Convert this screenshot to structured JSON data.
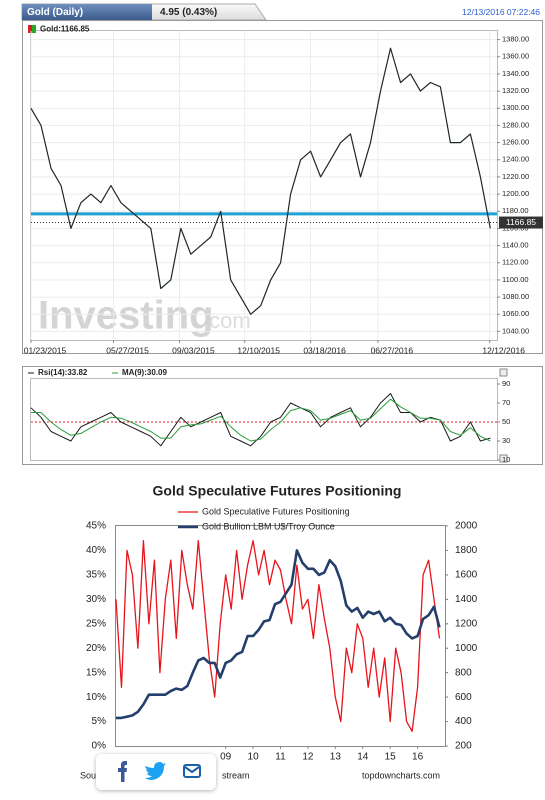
{
  "chart_data": [
    {
      "type": "line",
      "title": "Gold (Daily)",
      "change": "4.95 (0.43%)",
      "timestamp": "12/13/2016 07:22:46",
      "legend": "Gold:1166.85",
      "last_value": 1166.85,
      "watermark": "Investing",
      "watermark_suffix": ".com",
      "color": "#1f2a1f",
      "x": [
        0,
        15,
        30,
        45,
        60,
        75,
        90,
        105,
        120,
        135,
        150,
        165,
        180,
        195,
        210,
        225,
        240,
        255,
        270,
        285,
        300,
        315,
        330,
        345,
        360,
        375,
        390,
        405,
        420,
        435,
        450,
        465,
        480,
        495,
        510,
        525,
        540,
        555,
        570,
        585,
        600,
        615,
        630,
        645,
        660,
        675,
        690
      ],
      "values": [
        1300,
        1280,
        1230,
        1210,
        1160,
        1190,
        1200,
        1190,
        1210,
        1190,
        1180,
        1170,
        1160,
        1090,
        1100,
        1160,
        1130,
        1140,
        1150,
        1180,
        1100,
        1080,
        1060,
        1070,
        1100,
        1120,
        1200,
        1240,
        1250,
        1220,
        1240,
        1260,
        1270,
        1220,
        1260,
        1320,
        1370,
        1330,
        1340,
        1320,
        1330,
        1325,
        1260,
        1260,
        1270,
        1220,
        1160
      ],
      "xlim": [
        0,
        700
      ],
      "xticks": [
        {
          "value": 0,
          "label": "01/23/2015"
        },
        {
          "value": 124,
          "label": "05/27/2015"
        },
        {
          "value": 223,
          "label": "09/03/2015"
        },
        {
          "value": 321,
          "label": "12/10/2015"
        },
        {
          "value": 420,
          "label": "03/18/2016"
        },
        {
          "value": 521,
          "label": "06/27/2016"
        },
        {
          "value": 689,
          "label": "12/12/2016"
        }
      ],
      "ylim": [
        1030,
        1390
      ],
      "yticks": [
        {
          "value": 1040,
          "label": "1040.00"
        },
        {
          "value": 1060,
          "label": "1060.00"
        },
        {
          "value": 1080,
          "label": "1080.00"
        },
        {
          "value": 1100,
          "label": "1100.00"
        },
        {
          "value": 1120,
          "label": "1120.00"
        },
        {
          "value": 1140,
          "label": "1140.00"
        },
        {
          "value": 1160,
          "label": "1160.00"
        },
        {
          "value": 1180,
          "label": "1180.00"
        },
        {
          "value": 1200,
          "label": "1200.00"
        },
        {
          "value": 1220,
          "label": "1220.00"
        },
        {
          "value": 1240,
          "label": "1240.00"
        },
        {
          "value": 1260,
          "label": "1260.00"
        },
        {
          "value": 1280,
          "label": "1280.00"
        },
        {
          "value": 1300,
          "label": "1300.00"
        },
        {
          "value": 1320,
          "label": "1320.00"
        },
        {
          "value": 1340,
          "label": "1340.00"
        },
        {
          "value": 1360,
          "label": "1360.00"
        },
        {
          "value": 1380,
          "label": "1380.00"
        }
      ],
      "hline": 1177,
      "hline_color": "#1ea0d8",
      "grid": true
    },
    {
      "type": "line",
      "x": [
        0,
        15,
        30,
        45,
        60,
        75,
        90,
        105,
        120,
        135,
        150,
        165,
        180,
        195,
        210,
        225,
        240,
        255,
        270,
        285,
        300,
        315,
        330,
        345,
        360,
        375,
        390,
        405,
        420,
        435,
        450,
        465,
        480,
        495,
        510,
        525,
        540,
        555,
        570,
        585,
        600,
        615,
        630,
        645,
        660,
        675,
        690
      ],
      "series": [
        {
          "name": "Rsi(14):33.82",
          "color": "#1a1a1a",
          "values": [
            65,
            55,
            40,
            35,
            30,
            45,
            50,
            55,
            60,
            50,
            45,
            40,
            35,
            25,
            40,
            55,
            45,
            50,
            55,
            60,
            35,
            30,
            25,
            35,
            50,
            55,
            70,
            65,
            60,
            45,
            55,
            60,
            65,
            45,
            55,
            70,
            80,
            60,
            60,
            50,
            55,
            52,
            30,
            35,
            50,
            30,
            33
          ]
        },
        {
          "name": "MA(9):30.09",
          "color": "#2a9d3a",
          "values": [
            60,
            60,
            50,
            42,
            36,
            38,
            44,
            50,
            55,
            54,
            50,
            45,
            40,
            33,
            33,
            45,
            47,
            48,
            52,
            56,
            45,
            36,
            30,
            32,
            42,
            50,
            62,
            65,
            62,
            52,
            54,
            58,
            62,
            52,
            54,
            64,
            74,
            66,
            60,
            54,
            54,
            52,
            40,
            36,
            44,
            35,
            30
          ]
        }
      ],
      "xlim": [
        0,
        700
      ],
      "ylim": [
        10,
        90
      ],
      "yticks": [
        10,
        30,
        50,
        70,
        90
      ],
      "hline": 50,
      "hline_color": "#d22"
    },
    {
      "type": "line",
      "title": "Gold Speculative Futures Positioning",
      "x": [
        2005,
        2005.2,
        2005.4,
        2005.6,
        2005.8,
        2006,
        2006.2,
        2006.4,
        2006.6,
        2006.8,
        2007,
        2007.2,
        2007.4,
        2007.6,
        2007.8,
        2008,
        2008.2,
        2008.4,
        2008.6,
        2008.8,
        2009,
        2009.2,
        2009.4,
        2009.6,
        2009.8,
        2010,
        2010.2,
        2010.4,
        2010.6,
        2010.8,
        2011,
        2011.2,
        2011.4,
        2011.6,
        2011.8,
        2012,
        2012.2,
        2012.4,
        2012.6,
        2012.8,
        2013,
        2013.2,
        2013.4,
        2013.6,
        2013.8,
        2014,
        2014.2,
        2014.4,
        2014.6,
        2014.8,
        2015,
        2015.2,
        2015.4,
        2015.6,
        2015.8,
        2016,
        2016.2,
        2016.4,
        2016.6,
        2016.8
      ],
      "series": [
        {
          "name": "Gold Speculative Futures Positioning",
          "color": "#e8141c",
          "axis": "y",
          "values": [
            30,
            12,
            40,
            35,
            20,
            42,
            25,
            38,
            15,
            30,
            38,
            22,
            40,
            33,
            28,
            42,
            30,
            18,
            10,
            25,
            35,
            28,
            40,
            30,
            37,
            42,
            35,
            40,
            33,
            38,
            36,
            30,
            25,
            37,
            28,
            30,
            22,
            33,
            26,
            20,
            10,
            5,
            20,
            15,
            25,
            22,
            12,
            20,
            10,
            18,
            5,
            20,
            15,
            5,
            3,
            12,
            35,
            38,
            30,
            22
          ]
        },
        {
          "name": "Gold Bullion LBM U$/Troy Ounce",
          "color": "#243f6b",
          "axis": "y2",
          "values": [
            430,
            430,
            440,
            450,
            480,
            540,
            620,
            620,
            620,
            620,
            650,
            670,
            660,
            690,
            800,
            900,
            920,
            880,
            880,
            760,
            880,
            900,
            950,
            970,
            1100,
            1100,
            1150,
            1220,
            1230,
            1360,
            1380,
            1450,
            1520,
            1800,
            1700,
            1650,
            1650,
            1600,
            1620,
            1720,
            1670,
            1550,
            1350,
            1300,
            1330,
            1250,
            1300,
            1280,
            1300,
            1220,
            1250,
            1200,
            1190,
            1120,
            1080,
            1100,
            1240,
            1270,
            1340,
            1170
          ]
        }
      ],
      "xlim": [
        2005,
        2017
      ],
      "xticks": [
        {
          "value": 2009,
          "label": "09"
        },
        {
          "value": 2010,
          "label": "10"
        },
        {
          "value": 2011,
          "label": "11"
        },
        {
          "value": 2012,
          "label": "12"
        },
        {
          "value": 2013,
          "label": "13"
        },
        {
          "value": 2014,
          "label": "14"
        },
        {
          "value": 2015,
          "label": "15"
        },
        {
          "value": 2016,
          "label": "16"
        }
      ],
      "ylim": [
        0,
        45
      ],
      "yticks": [
        {
          "value": 0,
          "label": "0%"
        },
        {
          "value": 5,
          "label": "5%"
        },
        {
          "value": 10,
          "label": "10%"
        },
        {
          "value": 15,
          "label": "15%"
        },
        {
          "value": 20,
          "label": "20%"
        },
        {
          "value": 25,
          "label": "25%"
        },
        {
          "value": 30,
          "label": "30%"
        },
        {
          "value": 35,
          "label": "35%"
        },
        {
          "value": 40,
          "label": "40%"
        },
        {
          "value": 45,
          "label": "45%"
        }
      ],
      "y2lim": [
        200,
        2000
      ],
      "y2ticks": [
        200,
        400,
        600,
        800,
        1000,
        1200,
        1400,
        1600,
        1800,
        2000
      ],
      "source_left": "Sou",
      "source_right": "stream",
      "credit": "topdowncharts.com"
    }
  ]
}
